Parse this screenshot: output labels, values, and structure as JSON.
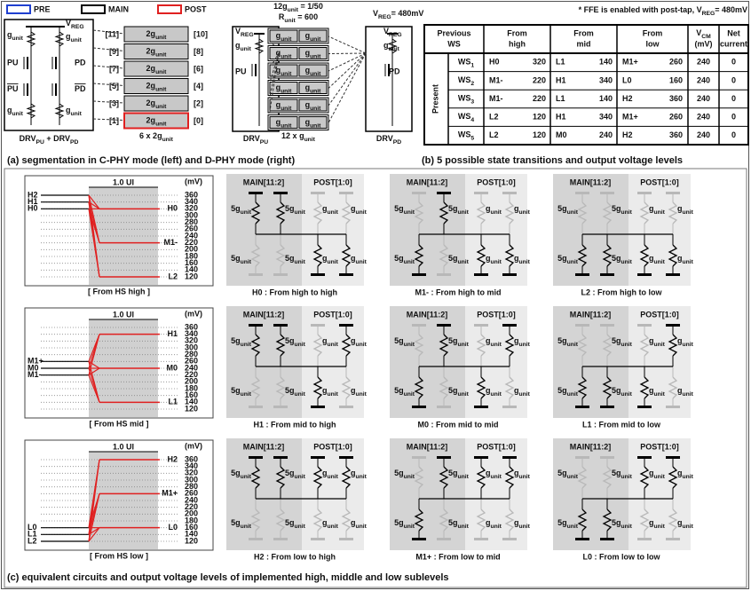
{
  "legend": {
    "items": [
      "PRE",
      "MAIN",
      "POST"
    ]
  },
  "panel_a": {
    "cphy": {
      "g": [
        "g",
        {
          "sub": "unit"
        }
      ],
      "vreg": [
        "V",
        {
          "sub": "REG"
        }
      ],
      "pu": "PU",
      "pd": "PD",
      "pu_bar": [
        {
          "over": "PU"
        }
      ],
      "pd_bar": [
        {
          "over": "PD"
        }
      ],
      "drv": [
        "DRV",
        {
          "sub": "PU"
        },
        " + DRV",
        {
          "sub": "PD"
        }
      ],
      "left": [
        "[11]",
        "[9]",
        "[7]",
        "[5]",
        "[3]",
        "[1]"
      ],
      "right": [
        "[10]",
        "[8]",
        "[6]",
        "[4]",
        "[2]",
        "[0]"
      ],
      "cell": [
        "2g",
        {
          "sub": "unit"
        }
      ],
      "count": [
        "6 x 2g",
        {
          "sub": "unit"
        }
      ]
    },
    "dphy": {
      "ratio": [
        "12g",
        {
          "sub": "unit"
        },
        " = 1/50"
      ],
      "runit": [
        "R",
        {
          "sub": "unit"
        },
        " = 600"
      ],
      "vreg": [
        "V",
        {
          "sub": "REG"
        },
        "= 480mV"
      ],
      "cell": [
        "g",
        {
          "sub": "unit"
        }
      ],
      "count": [
        "12 x g",
        {
          "sub": "unit"
        }
      ],
      "drv_pu": [
        "DRV",
        {
          "sub": "PU"
        }
      ],
      "drv_pd": [
        "DRV",
        {
          "sub": "PD"
        }
      ]
    },
    "caption": "(a) segmentation in C-PHY mode (left) and D-PHY mode (right)"
  },
  "panel_b": {
    "note": [
      "* FFE is enabled with post-tap, V",
      {
        "sub": "REG"
      },
      "= 480mV"
    ],
    "header": [
      {
        "l1": "Previous",
        "l2": "WS"
      },
      {
        "l1": "From",
        "l2": "high"
      },
      {
        "l1": "From",
        "l2": "mid"
      },
      {
        "l1": "From",
        "l2": "low"
      },
      {
        "l1": [
          "V",
          {
            "sub": "CM"
          }
        ],
        "l2": "(mV)"
      },
      {
        "l1": "Net",
        "l2": "current"
      }
    ],
    "side": "Present",
    "rows": [
      {
        "ws": [
          "WS",
          {
            "sub": "1"
          }
        ],
        "high": {
          "name": "H0",
          "mv": 320
        },
        "mid": {
          "name": "L1",
          "mv": 140
        },
        "low": {
          "name": "M1+",
          "mv": 260
        },
        "vcm": 240,
        "net": 0
      },
      {
        "ws": [
          "WS",
          {
            "sub": "2"
          }
        ],
        "high": {
          "name": "M1-",
          "mv": 220
        },
        "mid": {
          "name": "H1",
          "mv": 340
        },
        "low": {
          "name": "L0",
          "mv": 160
        },
        "vcm": 240,
        "net": 0
      },
      {
        "ws": [
          "WS",
          {
            "sub": "3"
          }
        ],
        "high": {
          "name": "M1-",
          "mv": 220
        },
        "mid": {
          "name": "L1",
          "mv": 140
        },
        "low": {
          "name": "H2",
          "mv": 360
        },
        "vcm": 240,
        "net": 0
      },
      {
        "ws": [
          "WS",
          {
            "sub": "4"
          }
        ],
        "high": {
          "name": "L2",
          "mv": 120
        },
        "mid": {
          "name": "H1",
          "mv": 340
        },
        "low": {
          "name": "M1+",
          "mv": 260
        },
        "vcm": 240,
        "net": 0
      },
      {
        "ws": [
          "WS",
          {
            "sub": "5"
          }
        ],
        "high": {
          "name": "L2",
          "mv": 120
        },
        "mid": {
          "name": "M0",
          "mv": 240
        },
        "low": {
          "name": "H2",
          "mv": 360
        },
        "vcm": 240,
        "net": 0
      }
    ],
    "caption": "(b) 5 possible state transitions and output voltage levels"
  },
  "panel_c": {
    "ui": "1.0 UI",
    "unit": "(mV)",
    "yticks": [
      360,
      340,
      320,
      300,
      280,
      260,
      240,
      220,
      200,
      180,
      160,
      140,
      120
    ],
    "main_header": "MAIN[11:2]",
    "post_header": "POST[1:0]",
    "main_r": [
      "5g",
      {
        "sub": "unit"
      }
    ],
    "post_r": [
      "g",
      {
        "sub": "unit"
      }
    ],
    "rows": [
      {
        "plot": {
          "caption": "[ From HS high ]",
          "from": [
            {
              "name": "H2",
              "mv": 360
            },
            {
              "name": "H1",
              "mv": 340
            },
            {
              "name": "H0",
              "mv": 320
            }
          ],
          "to": [
            {
              "name": "H0",
              "mv": 320
            },
            {
              "name": "M1-",
              "mv": 220
            },
            {
              "name": "L2",
              "mv": 120
            }
          ]
        },
        "circuits": [
          {
            "caption": "H0 : From high to high",
            "up": [
              true,
              true,
              false,
              false
            ]
          },
          {
            "caption": "M1- : From high to mid",
            "up": [
              false,
              true,
              false,
              false
            ]
          },
          {
            "caption": "L2 : From high to low",
            "up": [
              false,
              false,
              false,
              false
            ]
          }
        ]
      },
      {
        "plot": {
          "caption": "[ From HS mid ]",
          "from": [
            {
              "name": "M1+",
              "mv": 260
            },
            {
              "name": "M0",
              "mv": 240
            },
            {
              "name": "M1-",
              "mv": 220
            }
          ],
          "to": [
            {
              "name": "H1",
              "mv": 340
            },
            {
              "name": "M0",
              "mv": 240
            },
            {
              "name": "L1",
              "mv": 140
            }
          ]
        },
        "circuits": [
          {
            "caption": "H1 : From mid to high",
            "up": [
              true,
              true,
              false,
              true
            ]
          },
          {
            "caption": "M0 : From mid to mid",
            "up": [
              false,
              true,
              false,
              true
            ]
          },
          {
            "caption": "L1 : From mid to low",
            "up": [
              false,
              false,
              false,
              true
            ]
          }
        ]
      },
      {
        "plot": {
          "caption": "[ From HS low ]",
          "from": [
            {
              "name": "L0",
              "mv": 160
            },
            {
              "name": "L1",
              "mv": 140
            },
            {
              "name": "L2",
              "mv": 120
            }
          ],
          "to": [
            {
              "name": "H2",
              "mv": 360
            },
            {
              "name": "M1+",
              "mv": 260
            },
            {
              "name": "L0",
              "mv": 160
            }
          ]
        },
        "circuits": [
          {
            "caption": "H2 : From low to high",
            "up": [
              true,
              true,
              true,
              true
            ]
          },
          {
            "caption": "M1+ : From low to mid",
            "up": [
              false,
              true,
              true,
              true
            ]
          },
          {
            "caption": "L0 : From low to low",
            "up": [
              false,
              false,
              true,
              true
            ]
          }
        ]
      }
    ],
    "caption": "(c) equivalent circuits and output voltage levels of implemented high, middle and low sublevels"
  }
}
